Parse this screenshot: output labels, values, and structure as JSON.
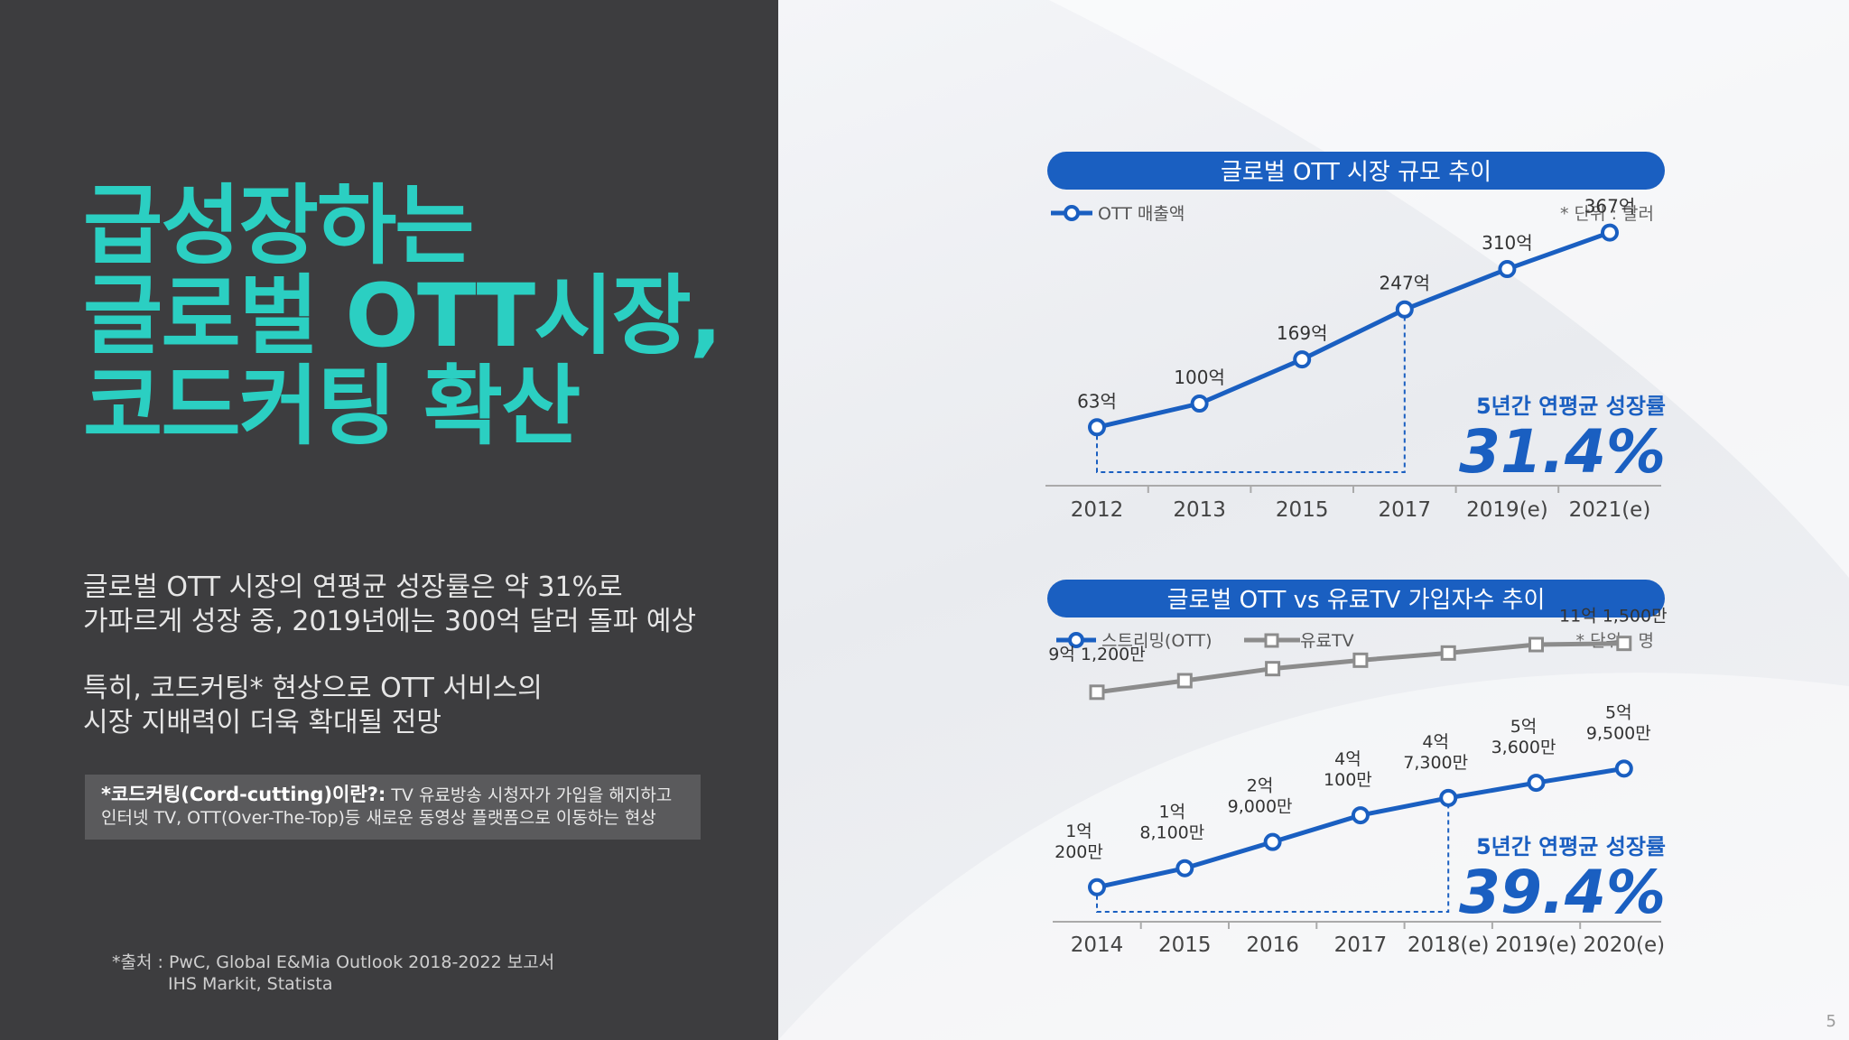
{
  "headline": {
    "line1": "급성장하는",
    "line2": "글로벌 OTT시장,",
    "line3": "코드커팅 확산"
  },
  "paragraph1": {
    "line1": "글로벌 OTT 시장의 연평균 성장률은 약 31%로",
    "line2": "가파르게 성장 중, 2019년에는 300억 달러 돌파 예상"
  },
  "paragraph2": {
    "line1": "특히, 코드커팅* 현상으로 OTT 서비스의",
    "line2": "시장 지배력이 더욱 확대될 전망"
  },
  "definition": {
    "term": "*코드커팅(Cord-cutting)이란?:",
    "line1_rest": " TV 유료방송 시청자가 가입을 해지하고",
    "line2": "인터넷 TV, OTT(Over-The-Top)등 새로운 동영상 플랫폼으로 이동하는 현상"
  },
  "source": {
    "line1": "*출처 : PwC, Global E&Mia Outlook 2018-2022 보고서",
    "line2": "IHS Markit, Statista"
  },
  "page_number": "5",
  "colors": {
    "accent_teal": "#2bcfc2",
    "blue": "#1a5fc1",
    "gray_series": "#8c8c8c",
    "dark_panel": "#3d3d3f"
  },
  "chart_data": [
    {
      "type": "line",
      "title": "글로벌 OTT 시장 규모 추이",
      "unit_note": "* 단위 :  달러",
      "categories": [
        "2012",
        "2013",
        "2015",
        "2017",
        "2019(e)",
        "2021(e)"
      ],
      "series": [
        {
          "name": "OTT 매출액",
          "values": [
            63,
            100,
            169,
            247,
            310,
            367
          ],
          "labels": [
            "63억",
            "100억",
            "169억",
            "247억",
            "310억",
            "367억"
          ]
        }
      ],
      "ylim": [
        0,
        420
      ],
      "growth_caption": "5년간 연평균 성장률",
      "growth_value": "31.4%",
      "grid": false,
      "legend": "top-left"
    },
    {
      "type": "line",
      "title": "글로벌 OTT vs  유료TV 가입자수 추이",
      "unit_note": "* 단위 :  명",
      "categories": [
        "2014",
        "2015",
        "2016",
        "2017",
        "2018(e)",
        "2019(e)",
        "2020(e)"
      ],
      "series": [
        {
          "name": "스트리밍(OTT)",
          "values": [
            102000000,
            181000000,
            290000000,
            401000000,
            473000000,
            536000000,
            595000000
          ],
          "labels": [
            "1억\n200만",
            "1억\n8,100만",
            "2억\n9,000만",
            "4억\n100만",
            "4억\n7,300만",
            "5억\n3,600만",
            "5억\n9,500만"
          ]
        },
        {
          "name": "유료TV",
          "values": [
            912000000,
            960000000,
            1010000000,
            1045000000,
            1075000000,
            1110000000,
            1115000000
          ],
          "labels": [
            "9억 1,200만",
            "",
            "",
            "",
            "",
            "",
            "11억 1,500만"
          ]
        }
      ],
      "ylim": [
        0,
        1200000000
      ],
      "growth_caption": "5년간 연평균 성장률",
      "growth_value": "39.4%",
      "grid": false,
      "legend": "top-left"
    }
  ]
}
